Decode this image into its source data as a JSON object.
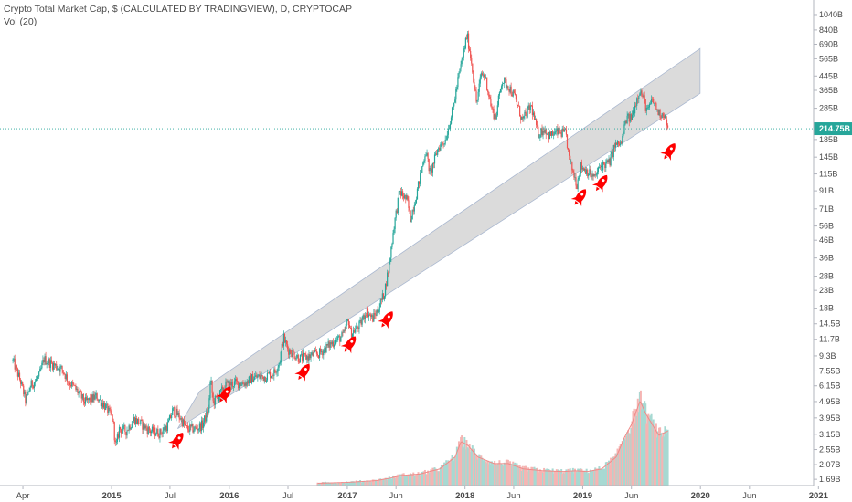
{
  "legend": {
    "title": "Crypto Total Market Cap, $ (CALCULATED BY TRADINGVIEW), D, CRYPTOCAP",
    "volume": "Vol (20)"
  },
  "colors": {
    "up": "#26a69a",
    "down": "#ef5350",
    "vol_up": "#a7d9d2",
    "vol_down": "#f5b5b3",
    "vol_ma": "#ef8a88",
    "channel_fill": "#d5d5d5",
    "channel_edge": "#aab8d0",
    "last_price": "#26a69a",
    "rocket": "#ff0000"
  },
  "chart_data": {
    "type": "candlestick",
    "title": "Crypto Total Market Cap, $ (CALCULATED BY TRADINGVIEW), D, CRYPTOCAP",
    "scale": "log",
    "y_ticks": [
      {
        "label": "1040B",
        "value": 1040
      },
      {
        "label": "840B",
        "value": 840
      },
      {
        "label": "690B",
        "value": 690
      },
      {
        "label": "565B",
        "value": 565
      },
      {
        "label": "445B",
        "value": 445
      },
      {
        "label": "365B",
        "value": 365
      },
      {
        "label": "285B",
        "value": 285
      },
      {
        "label": "185B",
        "value": 185
      },
      {
        "label": "145B",
        "value": 145
      },
      {
        "label": "115B",
        "value": 115
      },
      {
        "label": "91B",
        "value": 91
      },
      {
        "label": "71B",
        "value": 71
      },
      {
        "label": "56B",
        "value": 56
      },
      {
        "label": "46B",
        "value": 46
      },
      {
        "label": "36B",
        "value": 36
      },
      {
        "label": "28B",
        "value": 28
      },
      {
        "label": "23B",
        "value": 23
      },
      {
        "label": "18B",
        "value": 18
      },
      {
        "label": "14.5B",
        "value": 14.5
      },
      {
        "label": "11.7B",
        "value": 11.7
      },
      {
        "label": "9.3B",
        "value": 9.3
      },
      {
        "label": "7.55B",
        "value": 7.55
      },
      {
        "label": "6.15B",
        "value": 6.15
      },
      {
        "label": "4.95B",
        "value": 4.95
      },
      {
        "label": "3.95B",
        "value": 3.95
      },
      {
        "label": "3.15B",
        "value": 3.15
      },
      {
        "label": "2.55B",
        "value": 2.55
      },
      {
        "label": "2.07B",
        "value": 2.07
      },
      {
        "label": "1.69B",
        "value": 1.69
      }
    ],
    "y_range": [
      1.55,
      1150
    ],
    "x_ticks": [
      {
        "label": "Apr",
        "date": "2014-04-01",
        "year": false
      },
      {
        "label": "2015",
        "date": "2015-01-01",
        "year": true
      },
      {
        "label": "Jul",
        "date": "2015-07-01",
        "year": false
      },
      {
        "label": "2016",
        "date": "2016-01-01",
        "year": true
      },
      {
        "label": "Jul",
        "date": "2016-07-01",
        "year": false
      },
      {
        "label": "2017",
        "date": "2017-01-01",
        "year": true
      },
      {
        "label": "Jun",
        "date": "2017-06-01",
        "year": false
      },
      {
        "label": "2018",
        "date": "2018-01-01",
        "year": true
      },
      {
        "label": "Jun",
        "date": "2018-06-01",
        "year": false
      },
      {
        "label": "2019",
        "date": "2019-01-01",
        "year": true
      },
      {
        "label": "Jun",
        "date": "2019-06-01",
        "year": false
      },
      {
        "label": "2020",
        "date": "2020-01-01",
        "year": true
      },
      {
        "label": "Jun",
        "date": "2020-06-01",
        "year": false
      },
      {
        "label": "2021",
        "date": "2021-01-01",
        "year": true
      }
    ],
    "x_range": [
      "2014-01-20",
      "2021-04-15"
    ],
    "last_price": {
      "label": "214.75B",
      "value": 214.75
    },
    "price_path": [
      [
        "2014-03-01",
        8.7
      ],
      [
        "2014-03-25",
        6.5
      ],
      [
        "2014-04-10",
        5.0
      ],
      [
        "2014-04-25",
        6.2
      ],
      [
        "2014-05-20",
        6.9
      ],
      [
        "2014-06-05",
        8.9
      ],
      [
        "2014-07-01",
        8.3
      ],
      [
        "2014-08-01",
        7.7
      ],
      [
        "2014-08-20",
        6.6
      ],
      [
        "2014-09-20",
        5.6
      ],
      [
        "2014-10-10",
        4.9
      ],
      [
        "2014-11-15",
        5.3
      ],
      [
        "2014-12-10",
        4.7
      ],
      [
        "2015-01-05",
        3.9
      ],
      [
        "2015-01-14",
        2.6
      ],
      [
        "2015-01-25",
        3.4
      ],
      [
        "2015-02-15",
        3.3
      ],
      [
        "2015-03-12",
        3.9
      ],
      [
        "2015-04-05",
        3.6
      ],
      [
        "2015-05-01",
        3.3
      ],
      [
        "2015-06-01",
        3.2
      ],
      [
        "2015-06-25",
        3.6
      ],
      [
        "2015-07-10",
        4.4
      ],
      [
        "2015-08-01",
        4.0
      ],
      [
        "2015-08-20",
        3.4
      ],
      [
        "2015-09-20",
        3.4
      ],
      [
        "2015-10-10",
        3.6
      ],
      [
        "2015-10-28",
        4.4
      ],
      [
        "2015-11-04",
        6.8
      ],
      [
        "2015-11-12",
        4.9
      ],
      [
        "2015-12-01",
        5.4
      ],
      [
        "2015-12-20",
        6.2
      ],
      [
        "2016-01-20",
        6.4
      ],
      [
        "2016-02-20",
        6.4
      ],
      [
        "2016-03-15",
        6.9
      ],
      [
        "2016-04-20",
        7.0
      ],
      [
        "2016-05-20",
        7.4
      ],
      [
        "2016-06-05",
        8.6
      ],
      [
        "2016-06-17",
        12.0
      ],
      [
        "2016-07-01",
        10.2
      ],
      [
        "2016-08-05",
        9.0
      ],
      [
        "2016-09-01",
        9.2
      ],
      [
        "2016-10-05",
        9.6
      ],
      [
        "2016-11-10",
        11.0
      ],
      [
        "2016-12-20",
        12.3
      ],
      [
        "2017-01-04",
        15.5
      ],
      [
        "2017-01-12",
        12.6
      ],
      [
        "2017-02-10",
        14.3
      ],
      [
        "2017-03-01",
        17.5
      ],
      [
        "2017-03-20",
        15.5
      ],
      [
        "2017-04-05",
        17.5
      ],
      [
        "2017-04-25",
        22.0
      ],
      [
        "2017-05-10",
        32.0
      ],
      [
        "2017-05-25",
        55.0
      ],
      [
        "2017-06-12",
        90.0
      ],
      [
        "2017-07-05",
        80.0
      ],
      [
        "2017-07-16",
        62.0
      ],
      [
        "2017-08-05",
        90.0
      ],
      [
        "2017-09-01",
        160.0
      ],
      [
        "2017-09-15",
        115.0
      ],
      [
        "2017-10-10",
        165.0
      ],
      [
        "2017-11-01",
        185.0
      ],
      [
        "2017-11-25",
        285.0
      ],
      [
        "2017-12-10",
        420.0
      ],
      [
        "2017-12-25",
        580.0
      ],
      [
        "2018-01-07",
        790.0
      ],
      [
        "2018-01-20",
        560.0
      ],
      [
        "2018-02-06",
        300.0
      ],
      [
        "2018-02-20",
        460.0
      ],
      [
        "2018-03-05",
        440.0
      ],
      [
        "2018-03-25",
        280.0
      ],
      [
        "2018-04-06",
        250.0
      ],
      [
        "2018-04-25",
        420.0
      ],
      [
        "2018-05-15",
        390.0
      ],
      [
        "2018-06-05",
        330.0
      ],
      [
        "2018-06-28",
        240.0
      ],
      [
        "2018-07-25",
        295.0
      ],
      [
        "2018-08-15",
        200.0
      ],
      [
        "2018-09-05",
        215.0
      ],
      [
        "2018-09-20",
        195.0
      ],
      [
        "2018-10-15",
        205.0
      ],
      [
        "2018-11-10",
        200.0
      ],
      [
        "2018-11-20",
        140.0
      ],
      [
        "2018-12-14",
        100.0
      ],
      [
        "2018-12-25",
        128.0
      ],
      [
        "2019-01-15",
        120.0
      ],
      [
        "2019-02-05",
        108.0
      ],
      [
        "2019-02-25",
        128.0
      ],
      [
        "2019-03-25",
        135.0
      ],
      [
        "2019-04-10",
        170.0
      ],
      [
        "2019-05-01",
        175.0
      ],
      [
        "2019-05-15",
        245.0
      ],
      [
        "2019-06-01",
        250.0
      ],
      [
        "2019-06-26",
        370.0
      ],
      [
        "2019-07-10",
        320.0
      ],
      [
        "2019-07-20",
        270.0
      ],
      [
        "2019-08-05",
        320.0
      ],
      [
        "2019-08-25",
        265.0
      ],
      [
        "2019-09-10",
        265.0
      ],
      [
        "2019-09-23",
        214.75
      ]
    ],
    "volume": {
      "scale": "log",
      "y_range": [
        1.55,
        1150
      ],
      "points": [
        [
          "2016-10-01",
          1.6
        ],
        [
          "2017-01-01",
          1.62
        ],
        [
          "2017-04-01",
          1.66
        ],
        [
          "2017-05-15",
          1.72
        ],
        [
          "2017-06-15",
          1.78
        ],
        [
          "2017-08-15",
          1.82
        ],
        [
          "2017-10-15",
          1.95
        ],
        [
          "2017-12-01",
          2.3
        ],
        [
          "2017-12-20",
          2.85
        ],
        [
          "2018-01-10",
          2.7
        ],
        [
          "2018-02-10",
          2.3
        ],
        [
          "2018-04-01",
          2.1
        ],
        [
          "2018-05-15",
          2.1
        ],
        [
          "2018-07-01",
          1.95
        ],
        [
          "2018-09-01",
          1.9
        ],
        [
          "2018-11-01",
          1.88
        ],
        [
          "2018-12-10",
          1.9
        ],
        [
          "2019-01-15",
          1.88
        ],
        [
          "2019-03-01",
          1.95
        ],
        [
          "2019-04-15",
          2.3
        ],
        [
          "2019-05-10",
          3.0
        ],
        [
          "2019-06-01",
          3.6
        ],
        [
          "2019-06-28",
          5.0
        ],
        [
          "2019-07-15",
          4.2
        ],
        [
          "2019-08-05",
          3.6
        ],
        [
          "2019-08-25",
          3.1
        ],
        [
          "2019-09-23",
          3.3
        ]
      ]
    },
    "channel": {
      "lower": [
        [
          "2015-07-25",
          3.4
        ],
        [
          "2019-12-31",
          350.0
        ]
      ],
      "upper": [
        [
          "2015-10-01",
          5.7
        ],
        [
          "2019-12-31",
          650.0
        ]
      ]
    },
    "rocket_markers": [
      [
        "2015-07-25",
        2.9
      ],
      [
        "2015-12-20",
        5.5
      ],
      [
        "2016-08-20",
        7.5
      ],
      [
        "2017-01-10",
        11.0
      ],
      [
        "2017-05-05",
        15.5
      ],
      [
        "2018-12-25",
        84.0
      ],
      [
        "2019-03-01",
        102.0
      ],
      [
        "2019-09-28",
        158.0
      ]
    ]
  }
}
